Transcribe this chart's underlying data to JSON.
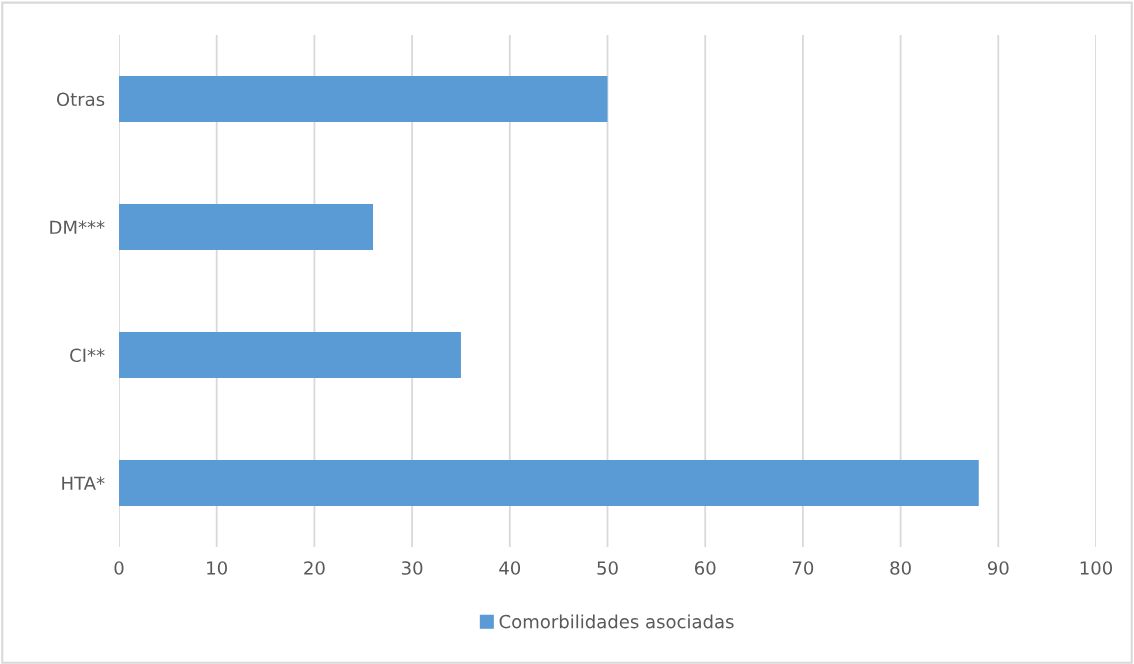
{
  "chart_data": {
    "type": "bar",
    "orientation": "horizontal",
    "categories": [
      "Otras",
      "DM***",
      "CI**",
      "HTA*"
    ],
    "series": [
      {
        "name": "Comorbilidades asociadas",
        "color": "#5b9bd5",
        "values": [
          50,
          26,
          35,
          88
        ]
      }
    ],
    "xlim": [
      0,
      100
    ],
    "xticks": [
      0,
      10,
      20,
      30,
      40,
      50,
      60,
      70,
      80,
      90,
      100
    ],
    "grid": "x",
    "legend": "bottom"
  }
}
